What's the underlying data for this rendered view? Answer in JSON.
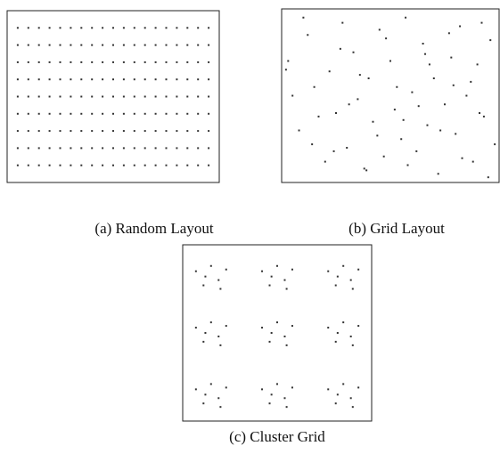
{
  "chart_data": [
    {
      "type": "scatter",
      "title": "(a) Random Layout",
      "color": "#333",
      "xlim": [
        0,
        100
      ],
      "ylim": [
        0,
        100
      ],
      "x": [
        5,
        10,
        15,
        20,
        25,
        30,
        35,
        40,
        45,
        50,
        55,
        60,
        65,
        70,
        75,
        80,
        85,
        90,
        95,
        5,
        10,
        15,
        20,
        25,
        30,
        35,
        40,
        45,
        50,
        55,
        60,
        65,
        70,
        75,
        80,
        85,
        90,
        95,
        5,
        10,
        15,
        20,
        25,
        30,
        35,
        40,
        45,
        50,
        55,
        60,
        65,
        70,
        75,
        80,
        85,
        90,
        95,
        5,
        10,
        15,
        20,
        25,
        30,
        35,
        40,
        45,
        50,
        55,
        60,
        65,
        70,
        75,
        80,
        85,
        90,
        95,
        5,
        10,
        15,
        20,
        25,
        30,
        35,
        40,
        45,
        50,
        55,
        60,
        65,
        70,
        75,
        80,
        85,
        90,
        95,
        5,
        10,
        15,
        20,
        25,
        30,
        35,
        40,
        45,
        50,
        55,
        60,
        65,
        70,
        75,
        80,
        85,
        90,
        95,
        5,
        10,
        15,
        20,
        25,
        30,
        35,
        40,
        45,
        50,
        55,
        60,
        65,
        70,
        75,
        80,
        85,
        90,
        95,
        5,
        10,
        15,
        20,
        25,
        30,
        35,
        40,
        45,
        50,
        55,
        60,
        65,
        70,
        75,
        80,
        85,
        90,
        95,
        5,
        10,
        15,
        20,
        25,
        30,
        35,
        40,
        45,
        50,
        55,
        60,
        65,
        70,
        75,
        80,
        85,
        90,
        95
      ],
      "y": [
        90,
        90,
        90,
        90,
        90,
        90,
        90,
        90,
        90,
        90,
        90,
        90,
        90,
        90,
        90,
        90,
        90,
        90,
        90,
        80,
        80,
        80,
        80,
        80,
        80,
        80,
        80,
        80,
        80,
        80,
        80,
        80,
        80,
        80,
        80,
        80,
        80,
        80,
        70,
        70,
        70,
        70,
        70,
        70,
        70,
        70,
        70,
        70,
        70,
        70,
        70,
        70,
        70,
        70,
        70,
        70,
        70,
        60,
        60,
        60,
        60,
        60,
        60,
        60,
        60,
        60,
        60,
        60,
        60,
        60,
        60,
        60,
        60,
        60,
        60,
        60,
        50,
        50,
        50,
        50,
        50,
        50,
        50,
        50,
        50,
        50,
        50,
        50,
        50,
        50,
        50,
        50,
        50,
        50,
        50,
        40,
        40,
        40,
        40,
        40,
        40,
        40,
        40,
        40,
        40,
        40,
        40,
        40,
        40,
        40,
        40,
        40,
        40,
        40,
        30,
        30,
        30,
        30,
        30,
        30,
        30,
        30,
        30,
        30,
        30,
        30,
        30,
        30,
        30,
        30,
        30,
        30,
        30,
        20,
        20,
        20,
        20,
        20,
        20,
        20,
        20,
        20,
        20,
        20,
        20,
        20,
        20,
        20,
        20,
        20,
        20,
        20,
        10,
        10,
        10,
        10,
        10,
        10,
        10,
        10,
        10,
        10,
        10,
        10,
        10,
        10,
        10,
        10,
        10,
        10,
        10
      ]
    },
    {
      "type": "scatter",
      "title": "(b) Grid Layout",
      "color": "#333",
      "xlim": [
        0,
        100
      ],
      "ylim": [
        0,
        100
      ],
      "x": [
        3,
        8,
        12,
        15,
        20,
        22,
        25,
        28,
        30,
        33,
        35,
        38,
        40,
        42,
        45,
        47,
        50,
        52,
        55,
        57,
        60,
        62,
        65,
        67,
        70,
        72,
        75,
        78,
        80,
        82,
        85,
        88,
        90,
        93,
        96,
        98,
        5,
        10,
        17,
        24,
        27,
        36,
        44,
        48,
        53,
        58,
        63,
        68,
        73,
        77,
        83,
        87,
        92,
        95,
        2,
        14,
        31,
        39,
        56,
        66,
        79,
        91
      ],
      "y": [
        70,
        30,
        85,
        55,
        12,
        64,
        40,
        92,
        20,
        75,
        48,
        8,
        60,
        35,
        88,
        15,
        70,
        42,
        25,
        95,
        52,
        18,
        80,
        33,
        60,
        5,
        45,
        72,
        28,
        90,
        50,
        12,
        68,
        38,
        82,
        22,
        50,
        95,
        38,
        18,
        77,
        62,
        27,
        83,
        55,
        10,
        44,
        68,
        30,
        86,
        14,
        58,
        92,
        3,
        65,
        22,
        45,
        7,
        36,
        74,
        56,
        40
      ]
    },
    {
      "type": "scatter",
      "title": "(c) Cluster Grid",
      "color": "#333",
      "xlim": [
        0,
        100
      ],
      "ylim": [
        0,
        100
      ],
      "x": [
        7,
        11,
        15,
        19,
        23,
        12,
        20,
        42,
        46,
        50,
        54,
        58,
        47,
        55,
        77,
        81,
        85,
        89,
        93,
        82,
        90,
        7,
        11,
        15,
        19,
        23,
        12,
        20,
        42,
        46,
        50,
        54,
        58,
        47,
        55,
        77,
        81,
        85,
        89,
        93,
        82,
        90,
        7,
        11,
        15,
        19,
        23,
        12,
        20,
        42,
        46,
        50,
        54,
        58,
        47,
        55,
        77,
        81,
        85,
        89,
        93,
        82,
        90
      ],
      "y": [
        85,
        77,
        88,
        80,
        86,
        82,
        75,
        85,
        77,
        88,
        80,
        86,
        82,
        75,
        85,
        77,
        88,
        80,
        86,
        82,
        75,
        53,
        45,
        56,
        48,
        54,
        50,
        43,
        53,
        45,
        56,
        48,
        54,
        50,
        43,
        53,
        45,
        56,
        48,
        54,
        50,
        43,
        18,
        10,
        21,
        13,
        19,
        15,
        8,
        18,
        10,
        21,
        13,
        19,
        15,
        8,
        18,
        10,
        21,
        13,
        19,
        15,
        8
      ]
    }
  ]
}
